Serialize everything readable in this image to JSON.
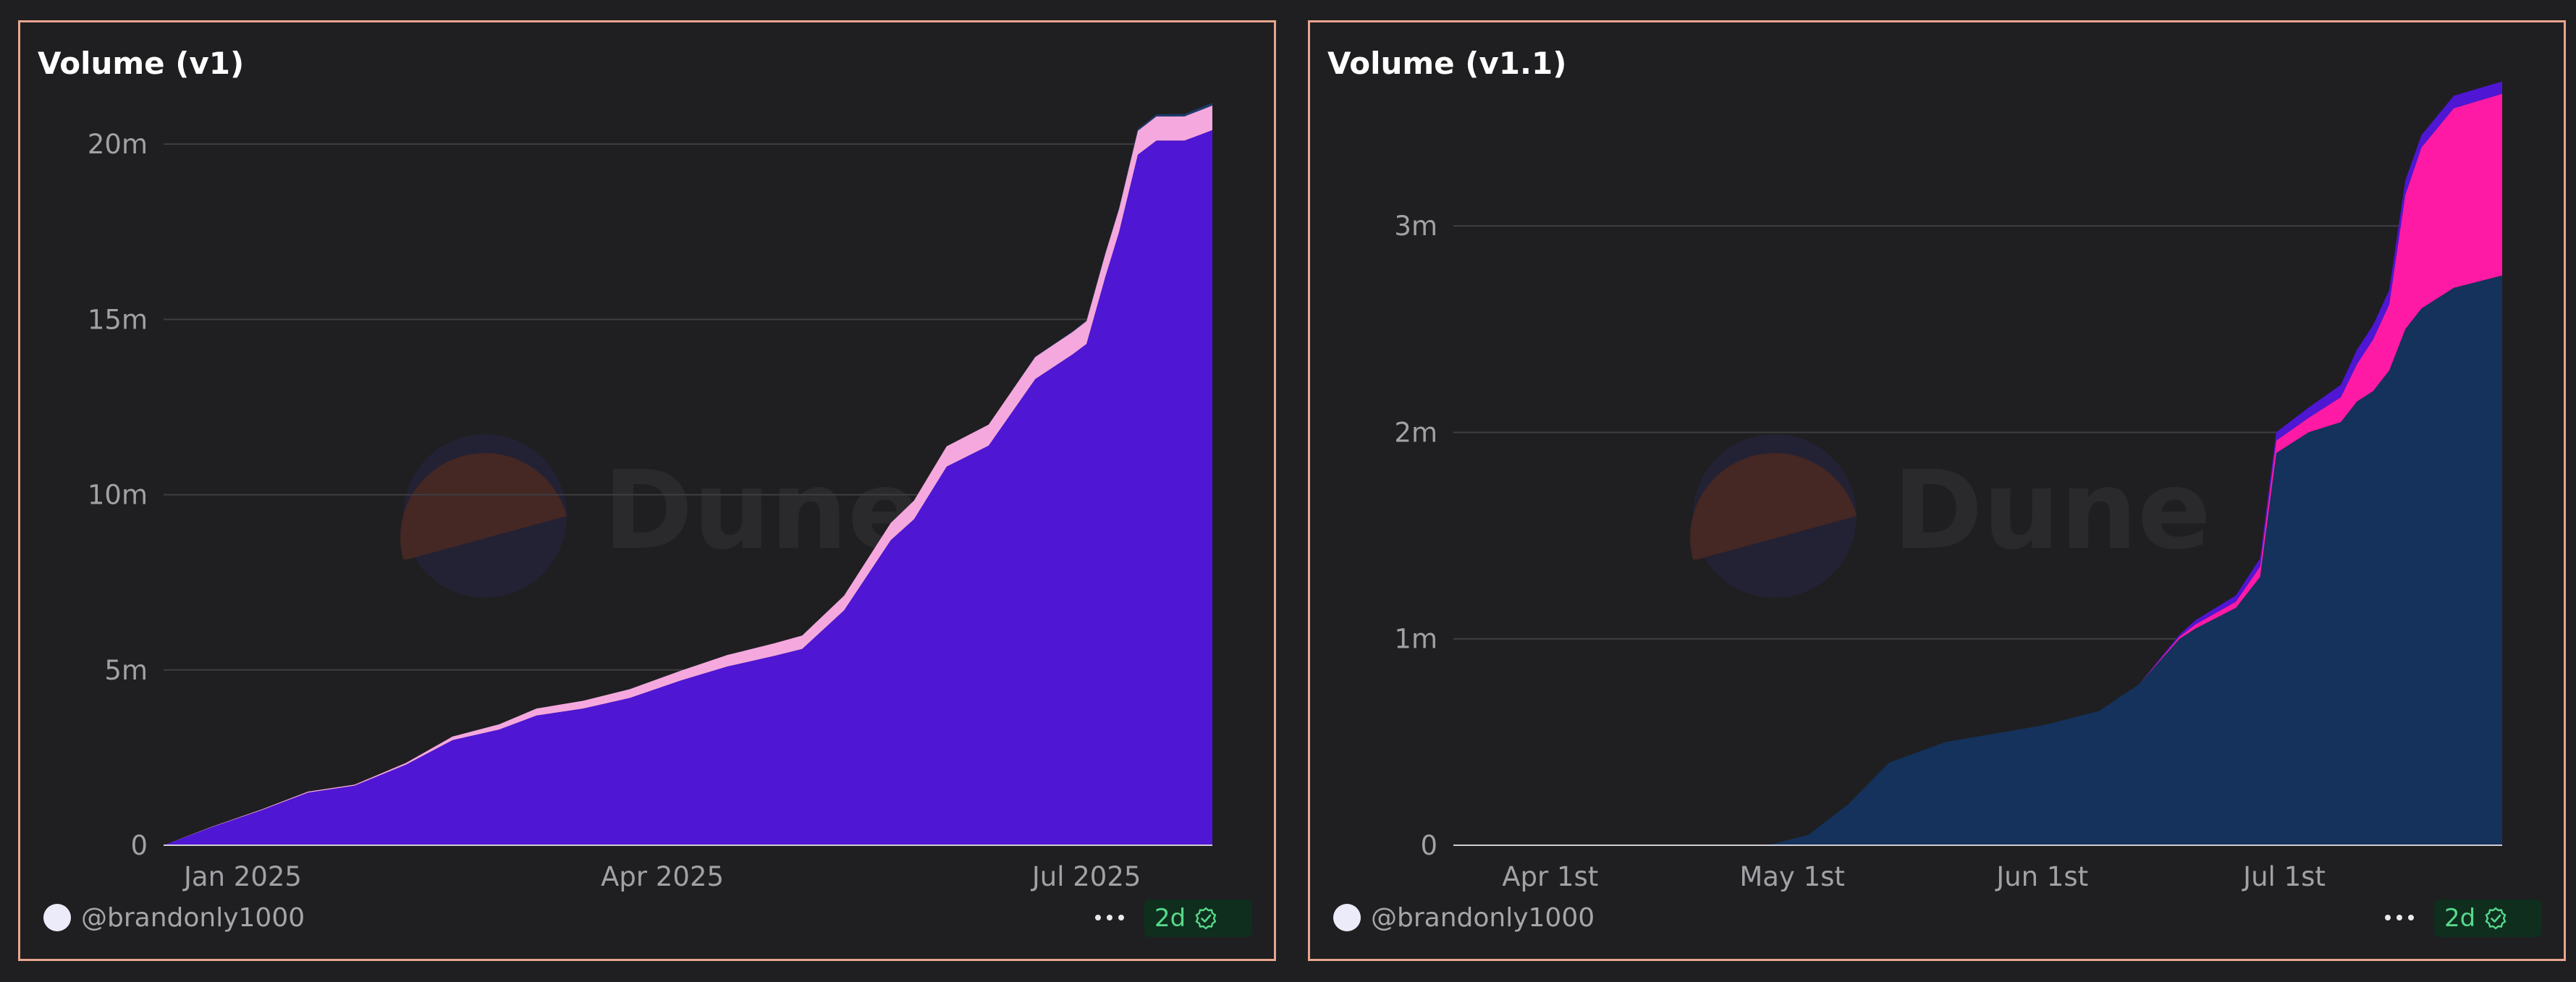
{
  "colors": {
    "background": "#1f1f21",
    "border": "#e8a58d",
    "grid": "#3e3e42",
    "tick_text": "#a1a1a6",
    "watermark_circle_top": "#452723",
    "watermark_circle_bottom": "#232234",
    "watermark_text": "#2a2a2d",
    "badge_bg": "#0f2e1e",
    "badge_text": "#57d98a"
  },
  "watermark": "Dune",
  "chart_data": [
    {
      "type": "area",
      "stacked": true,
      "title": "Volume (v1)",
      "xlabel": "",
      "ylabel": "",
      "x_axis": "date",
      "xlim": [
        "2024-12-15",
        "2025-07-28"
      ],
      "ylim": [
        0,
        21200000
      ],
      "yticks": [
        0,
        5000000,
        10000000,
        15000000,
        20000000
      ],
      "ytick_labels": [
        "0",
        "5m",
        "10m",
        "15m",
        "20m"
      ],
      "xticks": [
        "2025-01-01",
        "2025-04-01",
        "2025-07-01"
      ],
      "xtick_labels": [
        "Jan 2025",
        "Apr 2025",
        "Jul 2025"
      ],
      "grid": true,
      "legend": "none",
      "x": [
        "2024-12-15",
        "2024-12-25",
        "2025-01-05",
        "2025-01-15",
        "2025-01-25",
        "2025-02-05",
        "2025-02-15",
        "2025-02-25",
        "2025-03-05",
        "2025-03-15",
        "2025-03-25",
        "2025-04-05",
        "2025-04-15",
        "2025-04-25",
        "2025-05-01",
        "2025-05-10",
        "2025-05-20",
        "2025-05-25",
        "2025-06-01",
        "2025-06-10",
        "2025-06-20",
        "2025-06-28",
        "2025-07-01",
        "2025-07-05",
        "2025-07-08",
        "2025-07-12",
        "2025-07-16",
        "2025-07-22",
        "2025-07-28"
      ],
      "series": [
        {
          "color": "#4f16d4",
          "values": [
            0,
            500000,
            1000000,
            1500000,
            1700000,
            2300000,
            3000000,
            3300000,
            3700000,
            3900000,
            4200000,
            4700000,
            5100000,
            5400000,
            5600000,
            6700000,
            8700000,
            9300000,
            10800000,
            11400000,
            13300000,
            14000000,
            14300000,
            16200000,
            17500000,
            19700000,
            20100000,
            20100000,
            20400000
          ]
        },
        {
          "color": "#f5a8dd",
          "values": [
            0,
            10000,
            20000,
            30000,
            30000,
            50000,
            100000,
            150000,
            200000,
            220000,
            250000,
            280000,
            330000,
            360000,
            380000,
            420000,
            490000,
            530000,
            580000,
            600000,
            630000,
            640000,
            650000,
            660000,
            660000,
            680000,
            690000,
            690000,
            700000
          ]
        },
        {
          "color": "#1c3a6b",
          "values": [
            0,
            0,
            0,
            0,
            0,
            0,
            0,
            0,
            0,
            0,
            0,
            0,
            0,
            0,
            0,
            0,
            0,
            0,
            0,
            0,
            10000,
            20000,
            20000,
            30000,
            40000,
            50000,
            60000,
            70000,
            80000
          ]
        }
      ]
    },
    {
      "type": "area",
      "stacked": true,
      "title": "Volume (v1.1)",
      "xlabel": "",
      "ylabel": "",
      "x_axis": "date",
      "xlim": [
        "2025-03-20",
        "2025-07-28"
      ],
      "ylim": [
        0,
        3600000
      ],
      "yticks": [
        0,
        1000000,
        2000000,
        3000000
      ],
      "ytick_labels": [
        "0",
        "1m",
        "2m",
        "3m"
      ],
      "xticks": [
        "2025-04-01",
        "2025-05-01",
        "2025-06-01",
        "2025-07-01"
      ],
      "xtick_labels": [
        "Apr 1st",
        "May 1st",
        "Jun 1st",
        "Jul 1st"
      ],
      "grid": true,
      "legend": "none",
      "x": [
        "2025-03-20",
        "2025-04-20",
        "2025-04-28",
        "2025-05-03",
        "2025-05-08",
        "2025-05-13",
        "2025-05-20",
        "2025-06-01",
        "2025-06-08",
        "2025-06-13",
        "2025-06-18",
        "2025-06-20",
        "2025-06-25",
        "2025-06-28",
        "2025-06-30",
        "2025-07-04",
        "2025-07-08",
        "2025-07-10",
        "2025-07-12",
        "2025-07-14",
        "2025-07-16",
        "2025-07-18",
        "2025-07-22",
        "2025-07-28"
      ],
      "series": [
        {
          "color": "#14325c",
          "values": [
            0,
            0,
            0,
            50000,
            200000,
            400000,
            500000,
            580000,
            650000,
            780000,
            1000000,
            1050000,
            1150000,
            1300000,
            1900000,
            2000000,
            2050000,
            2150000,
            2200000,
            2300000,
            2500000,
            2600000,
            2700000,
            2760000
          ]
        },
        {
          "color": "#ff1aa6",
          "values": [
            0,
            0,
            0,
            0,
            0,
            0,
            0,
            0,
            0,
            0,
            10000,
            20000,
            30000,
            50000,
            60000,
            70000,
            120000,
            180000,
            250000,
            320000,
            650000,
            780000,
            870000,
            880000
          ]
        },
        {
          "color": "#4f16d4",
          "values": [
            0,
            0,
            0,
            0,
            0,
            0,
            0,
            0,
            0,
            0,
            10000,
            20000,
            30000,
            40000,
            40000,
            50000,
            60000,
            70000,
            70000,
            70000,
            70000,
            60000,
            60000,
            60000
          ]
        }
      ]
    }
  ],
  "footer": {
    "author": "@brandonly1000",
    "badge_label": "2d",
    "more_icon": "more-horizontal-icon",
    "check_icon": "verified-check-icon"
  }
}
